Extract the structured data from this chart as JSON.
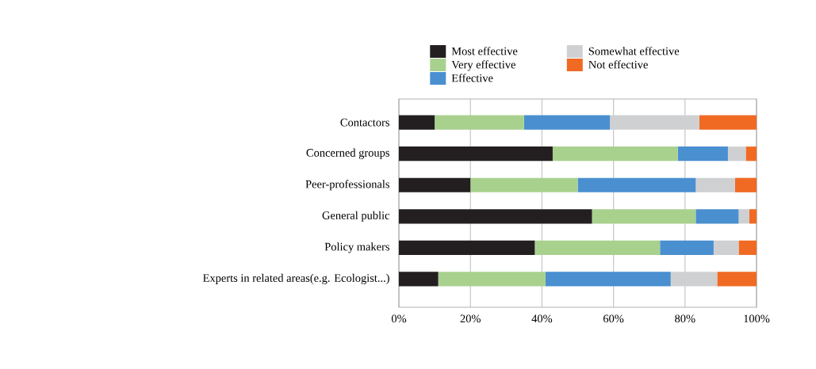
{
  "chart_data": {
    "type": "bar",
    "orientation": "horizontal",
    "stacked": true,
    "categories": [
      "Contactors",
      "Concerned groups",
      "Peer-professionals",
      "General public",
      "Policy makers",
      "Experts in related areas(e.g. Ecologist...)"
    ],
    "series": [
      {
        "name": "Most effective",
        "color": "#231f20",
        "values": [
          10,
          43,
          20,
          54,
          38,
          11
        ]
      },
      {
        "name": "Very effective",
        "color": "#a9d18e",
        "values": [
          25,
          35,
          30,
          29,
          35,
          30
        ]
      },
      {
        "name": "Effective",
        "color": "#4a8fd0",
        "values": [
          24,
          14,
          33,
          12,
          15,
          35
        ]
      },
      {
        "name": "Somewhat effective",
        "color": "#cfd0d2",
        "values": [
          25,
          5,
          11,
          3,
          7,
          13
        ]
      },
      {
        "name": "Not effective",
        "color": "#f06a24",
        "values": [
          16,
          3,
          6,
          2,
          5,
          11
        ]
      }
    ],
    "xlim": [
      0,
      100
    ],
    "xticks": [
      {
        "value": 0,
        "label": "0%"
      },
      {
        "value": 20,
        "label": "20%"
      },
      {
        "value": 40,
        "label": "40%"
      },
      {
        "value": 60,
        "label": "60%"
      },
      {
        "value": 80,
        "label": "80%"
      },
      {
        "value": 100,
        "label": "100%"
      }
    ],
    "grid": "x",
    "legend": "top"
  }
}
